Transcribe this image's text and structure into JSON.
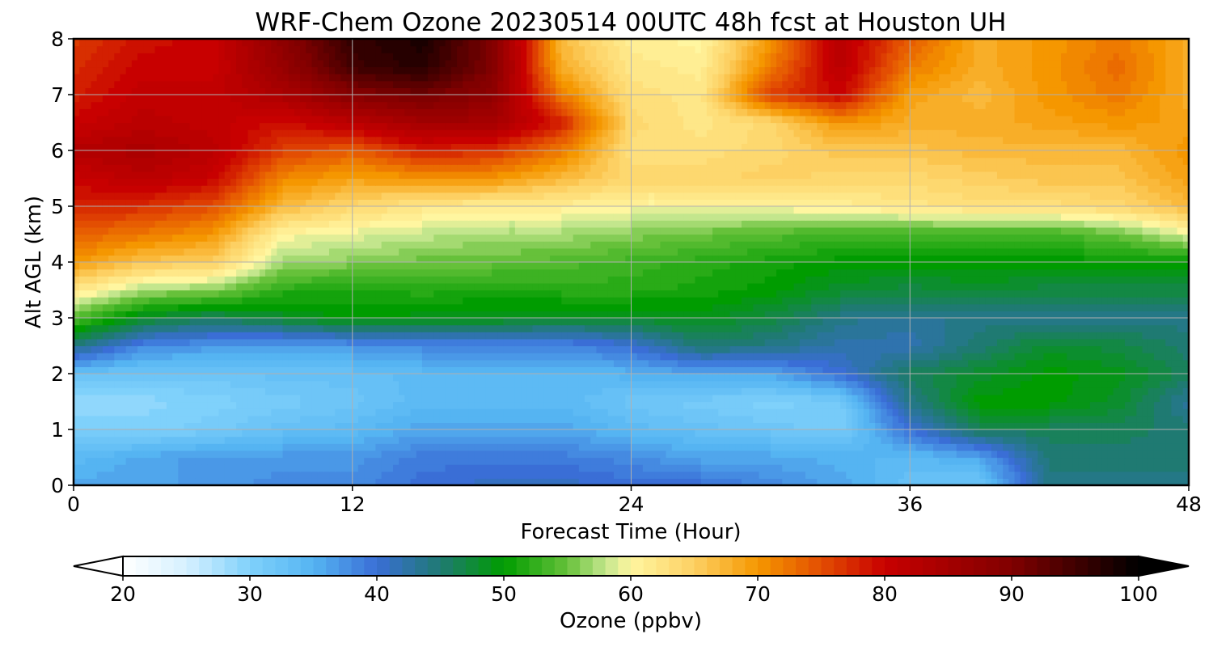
{
  "chart_data": {
    "type": "heatmap",
    "title": "WRF-Chem Ozone  20230514 00UTC 48h fcst at Houston UH",
    "xlabel": "Forecast Time (Hour)",
    "ylabel": "Alt AGL (km)",
    "xlim": [
      0,
      48
    ],
    "ylim": [
      0,
      8
    ],
    "xticks": [
      0,
      12,
      24,
      36,
      48
    ],
    "yticks": [
      0,
      1,
      2,
      3,
      4,
      5,
      6,
      7,
      8
    ],
    "grid": true,
    "x": [
      0,
      3,
      6,
      9,
      12,
      15,
      18,
      21,
      24,
      27,
      30,
      33,
      36,
      39,
      42,
      45,
      48
    ],
    "y": [
      0,
      0.5,
      1,
      1.5,
      2,
      2.5,
      3,
      3.5,
      4,
      4.5,
      5,
      5.5,
      6,
      6.5,
      7,
      7.5,
      8
    ],
    "z": [
      [
        36,
        36,
        37,
        38,
        38,
        40,
        41,
        41,
        40,
        40,
        38,
        36,
        33,
        32,
        44,
        44,
        44
      ],
      [
        34,
        36,
        37,
        37,
        37,
        39,
        39,
        39,
        38,
        36,
        36,
        35,
        34,
        36,
        45,
        45,
        45
      ],
      [
        30,
        30,
        31,
        33,
        34,
        36,
        36,
        36,
        34,
        33,
        32,
        31,
        40,
        46,
        46,
        46,
        45
      ],
      [
        29,
        29,
        30,
        31,
        32,
        34,
        34,
        34,
        32,
        31,
        30,
        31,
        44,
        50,
        50,
        48,
        43
      ],
      [
        33,
        32,
        32,
        33,
        33,
        34,
        34,
        34,
        35,
        36,
        36,
        40,
        46,
        48,
        50,
        49,
        46
      ],
      [
        44,
        38,
        37,
        36,
        37,
        38,
        38,
        38,
        40,
        45,
        44,
        42,
        42,
        45,
        48,
        47,
        45
      ],
      [
        54,
        48,
        46,
        48,
        50,
        49,
        49,
        48,
        48,
        49,
        47,
        44,
        43,
        44,
        44,
        44,
        44
      ],
      [
        62,
        57,
        56,
        52,
        51,
        52,
        51,
        52,
        52,
        51,
        50,
        48,
        47,
        48,
        47,
        47,
        47
      ],
      [
        70,
        66,
        65,
        57,
        56,
        55,
        55,
        54,
        53,
        52,
        51,
        50,
        50,
        50,
        50,
        50,
        50
      ],
      [
        74,
        72,
        70,
        60,
        59,
        58,
        57,
        57,
        56,
        55,
        54,
        53,
        53,
        53,
        53,
        55,
        59
      ],
      [
        78,
        77,
        75,
        67,
        64,
        62,
        61,
        61,
        60,
        60,
        60,
        61,
        62,
        63,
        63,
        64,
        67
      ],
      [
        80,
        82,
        80,
        71,
        69,
        70,
        70,
        67,
        64,
        64,
        65,
        64,
        64,
        65,
        66,
        66,
        69
      ],
      [
        83,
        84,
        82,
        76,
        74,
        78,
        77,
        72,
        63,
        63,
        64,
        66,
        66,
        67,
        67,
        67,
        70
      ],
      [
        80,
        82,
        81,
        79,
        82,
        85,
        85,
        78,
        64,
        62,
        64,
        70,
        68,
        68,
        69,
        70,
        69
      ],
      [
        78,
        81,
        81,
        84,
        89,
        91,
        88,
        72,
        63,
        62,
        76,
        80,
        69,
        67,
        70,
        72,
        68
      ],
      [
        77,
        80,
        80,
        87,
        95,
        97,
        90,
        68,
        62,
        61,
        72,
        82,
        72,
        68,
        70,
        73,
        68
      ],
      [
        76,
        79,
        80,
        88,
        96,
        98,
        90,
        67,
        61,
        60,
        70,
        82,
        74,
        68,
        70,
        72,
        68
      ]
    ],
    "levels_min": 20,
    "levels_max": 100,
    "colorbar": {
      "label": "Ozone  (ppbv)",
      "ticks": [
        20,
        30,
        40,
        50,
        60,
        70,
        80,
        90,
        100
      ],
      "extend": "both",
      "stops": [
        {
          "value": 20,
          "color": "#ffffff"
        },
        {
          "value": 25,
          "color": "#d6f0ff"
        },
        {
          "value": 30,
          "color": "#7fd1fb"
        },
        {
          "value": 35,
          "color": "#55b4f2"
        },
        {
          "value": 40,
          "color": "#3a6ed6"
        },
        {
          "value": 45,
          "color": "#1f7a72"
        },
        {
          "value": 50,
          "color": "#009c00"
        },
        {
          "value": 55,
          "color": "#66c13a"
        },
        {
          "value": 58,
          "color": "#c3e68d"
        },
        {
          "value": 60,
          "color": "#fff6a0"
        },
        {
          "value": 65,
          "color": "#fdd063"
        },
        {
          "value": 70,
          "color": "#f59700"
        },
        {
          "value": 75,
          "color": "#e34e02"
        },
        {
          "value": 80,
          "color": "#c80000"
        },
        {
          "value": 90,
          "color": "#800000"
        },
        {
          "value": 100,
          "color": "#000000"
        }
      ]
    }
  }
}
